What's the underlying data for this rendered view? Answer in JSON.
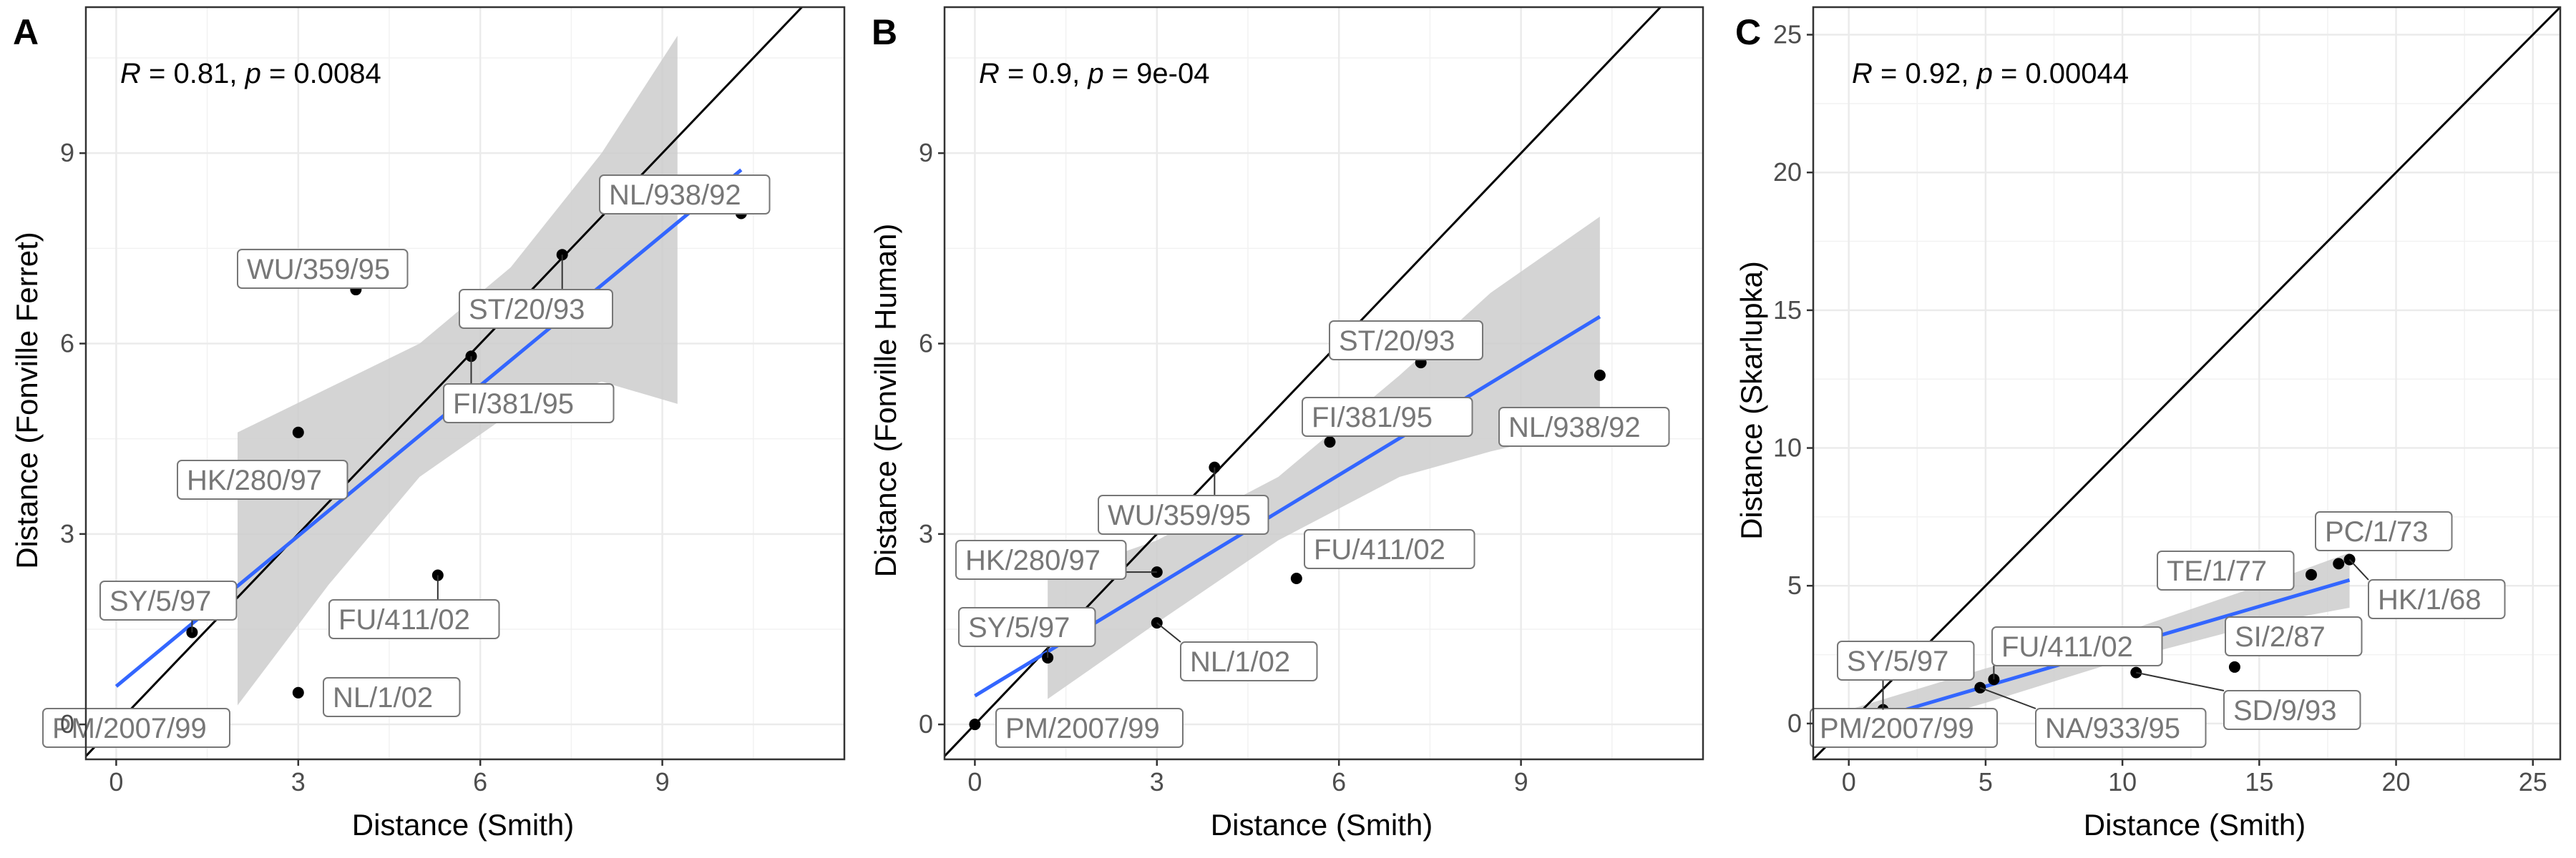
{
  "chart_data": [
    {
      "type": "scatter",
      "panel": "A",
      "xlabel": "Distance (Smith)",
      "ylabel": "Distance (Fonville Ferret)",
      "stat": {
        "r": "0.81",
        "p": "0.0084"
      },
      "xlim": [
        -0.5,
        12.0
      ],
      "ylim": [
        -0.55,
        11.3
      ],
      "xticks": [
        0,
        3,
        6,
        9
      ],
      "yticks": [
        0,
        3,
        6,
        9
      ],
      "points": [
        {
          "label": "PM/2007/99",
          "x": 0.0,
          "y": 0.0
        },
        {
          "label": "SY/5/97",
          "x": 1.25,
          "y": 1.45
        },
        {
          "label": "NL/1/02",
          "x": 3.0,
          "y": 0.5
        },
        {
          "label": "HK/280/97",
          "x": 3.0,
          "y": 4.6
        },
        {
          "label": "WU/359/95",
          "x": 3.95,
          "y": 6.85
        },
        {
          "label": "FU/411/02",
          "x": 5.3,
          "y": 2.35
        },
        {
          "label": "FI/381/95",
          "x": 5.85,
          "y": 5.8
        },
        {
          "label": "ST/20/93",
          "x": 7.35,
          "y": 7.4
        },
        {
          "label": "NL/938/92",
          "x": 10.3,
          "y": 8.05
        }
      ],
      "fit": {
        "intercept": 0.6,
        "slope": 0.79,
        "x_range": [
          0.0,
          10.3
        ]
      },
      "ci": [
        {
          "x": 2.0,
          "lo": 0.3,
          "hi": 4.6
        },
        {
          "x": 3.5,
          "lo": 2.2,
          "hi": 5.3
        },
        {
          "x": 5.0,
          "lo": 3.9,
          "hi": 6.0
        },
        {
          "x": 6.5,
          "lo": 4.9,
          "hi": 7.2
        },
        {
          "x": 8.0,
          "lo": 5.4,
          "hi": 9.0
        },
        {
          "x": 9.25,
          "lo": 5.05,
          "hi": 10.85
        }
      ],
      "grid": true
    },
    {
      "type": "scatter",
      "panel": "B",
      "xlabel": "Distance (Smith)",
      "ylabel": "Distance (Fonville Human)",
      "stat": {
        "r": "0.9",
        "p": "9e-04"
      },
      "xlim": [
        -0.5,
        12.0
      ],
      "ylim": [
        -0.55,
        11.3
      ],
      "xticks": [
        0,
        3,
        6,
        9
      ],
      "yticks": [
        0,
        3,
        6,
        9
      ],
      "points": [
        {
          "label": "PM/2007/99",
          "x": 0.0,
          "y": 0.0
        },
        {
          "label": "SY/5/97",
          "x": 1.2,
          "y": 1.05
        },
        {
          "label": "NL/1/02",
          "x": 3.0,
          "y": 1.6
        },
        {
          "label": "HK/280/97",
          "x": 3.0,
          "y": 2.4
        },
        {
          "label": "WU/359/95",
          "x": 3.95,
          "y": 4.05
        },
        {
          "label": "FU/411/02",
          "x": 5.3,
          "y": 2.3
        },
        {
          "label": "FI/381/95",
          "x": 5.85,
          "y": 4.45
        },
        {
          "label": "ST/20/93",
          "x": 7.35,
          "y": 5.7
        },
        {
          "label": "NL/938/92",
          "x": 10.3,
          "y": 5.5
        }
      ],
      "fit": {
        "intercept": 0.45,
        "slope": 0.58,
        "x_range": [
          0.0,
          10.3
        ]
      },
      "ci": [
        {
          "x": 1.2,
          "lo": 0.4,
          "hi": 2.3
        },
        {
          "x": 3.0,
          "lo": 1.6,
          "hi": 2.9
        },
        {
          "x": 5.0,
          "lo": 2.9,
          "hi": 3.9
        },
        {
          "x": 7.0,
          "lo": 3.9,
          "hi": 5.5
        },
        {
          "x": 8.5,
          "lo": 4.3,
          "hi": 6.8
        },
        {
          "x": 10.3,
          "lo": 4.7,
          "hi": 8.0
        }
      ],
      "grid": true
    },
    {
      "type": "scatter",
      "panel": "C",
      "xlabel": "Distance (Smith)",
      "ylabel": "Distance (Skarlupka)",
      "stat": {
        "r": "0.92",
        "p": "0.00044"
      },
      "xlim": [
        -1.3,
        26.0
      ],
      "ylim": [
        -1.3,
        26.0
      ],
      "xticks": [
        0,
        5,
        10,
        15,
        20,
        25
      ],
      "yticks": [
        0,
        5,
        10,
        15,
        20,
        25
      ],
      "points": [
        {
          "label": "PM/2007/99",
          "x": 0.0,
          "y": 0.0
        },
        {
          "label": "SY/5/97",
          "x": 1.25,
          "y": 0.5
        },
        {
          "label": "FU/411/02",
          "x": 5.3,
          "y": 1.6
        },
        {
          "label": "NA/933/95",
          "x": 4.8,
          "y": 1.3
        },
        {
          "label": "SD/9/93",
          "x": 10.5,
          "y": 1.85
        },
        {
          "label": "SI/2/87",
          "x": 14.1,
          "y": 2.05
        },
        {
          "label": "TE/1/77",
          "x": 16.9,
          "y": 5.4
        },
        {
          "label": "PC/1/73",
          "x": 17.9,
          "y": 5.8
        },
        {
          "label": "HK/1/68",
          "x": 18.3,
          "y": 5.95
        }
      ],
      "fit": {
        "intercept": -0.1,
        "slope": 0.29,
        "x_range": [
          0.0,
          18.3
        ]
      },
      "ci": [
        {
          "x": 0.0,
          "lo": -0.7,
          "hi": 0.5
        },
        {
          "x": 5.0,
          "lo": 0.75,
          "hi": 2.0
        },
        {
          "x": 10.0,
          "lo": 2.3,
          "hi": 3.3
        },
        {
          "x": 15.0,
          "lo": 3.6,
          "hi": 5.0
        },
        {
          "x": 18.3,
          "lo": 4.2,
          "hi": 6.2
        }
      ],
      "grid": true
    }
  ]
}
